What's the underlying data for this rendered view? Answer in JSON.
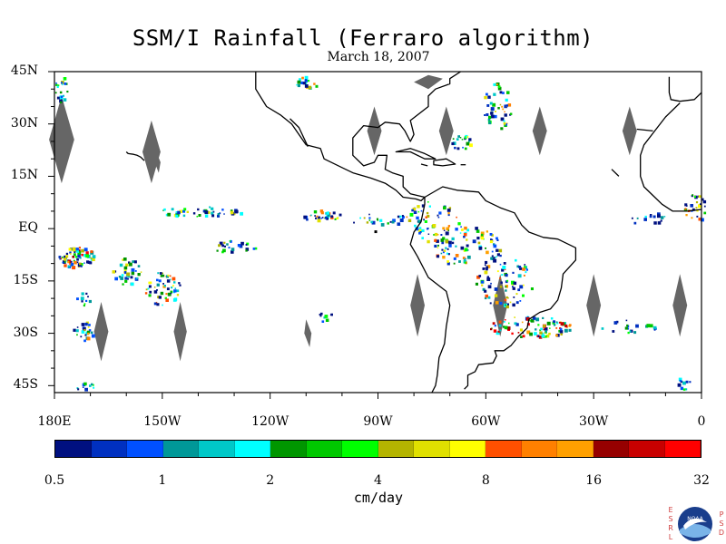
{
  "title": "SSM/I Rainfall (Ferraro algorithm)",
  "subtitle": "March 18, 2007",
  "map": {
    "lon_min": -180,
    "lon_max": 0,
    "lat_min": -47,
    "lat_max": 45,
    "ocean_color": "#ffffff",
    "coast_color": "#000000",
    "gap_color": "#666666"
  },
  "y_ticks": [
    {
      "lat": 45,
      "label": "45N"
    },
    {
      "lat": 30,
      "label": "30N"
    },
    {
      "lat": 15,
      "label": "15N"
    },
    {
      "lat": 0,
      "label": "EQ"
    },
    {
      "lat": -15,
      "label": "15S"
    },
    {
      "lat": -30,
      "label": "30S"
    },
    {
      "lat": -45,
      "label": "45S"
    }
  ],
  "x_ticks": [
    {
      "lon": -180,
      "label": "180E"
    },
    {
      "lon": -150,
      "label": "150W"
    },
    {
      "lon": -120,
      "label": "120W"
    },
    {
      "lon": -90,
      "label": "90W"
    },
    {
      "lon": -60,
      "label": "60W"
    },
    {
      "lon": -30,
      "label": "30W"
    },
    {
      "lon": 0,
      "label": "0"
    }
  ],
  "colorbar": {
    "colors": [
      "#001080",
      "#0030c0",
      "#0050ff",
      "#009898",
      "#00c8c8",
      "#00ffff",
      "#009600",
      "#00c800",
      "#00ff00",
      "#b4b400",
      "#e0e000",
      "#ffff00",
      "#ff5000",
      "#ff8000",
      "#ffa000",
      "#960000",
      "#c80000",
      "#ff0000"
    ],
    "labels": [
      "0.5",
      "1",
      "2",
      "4",
      "8",
      "16",
      "32"
    ],
    "unit": "cm/day"
  },
  "logo": {
    "left_letters": [
      "E",
      "S",
      "R",
      "L"
    ],
    "right_letters": [
      "P",
      "S",
      "D"
    ],
    "agency": "NOAA"
  },
  "swath_gaps": [
    {
      "lon": -178,
      "lat_top": 38,
      "lat_bottom": 13,
      "half_width": 3.5
    },
    {
      "lon": -153,
      "lat_top": 31,
      "lat_bottom": 13,
      "half_width": 2.5
    },
    {
      "lon": -91,
      "lat_top": 35,
      "lat_bottom": 21,
      "half_width": 2
    },
    {
      "lon": -71,
      "lat_top": 35,
      "lat_bottom": 21,
      "half_width": 2
    },
    {
      "lon": -45,
      "lat_top": 35,
      "lat_bottom": 21,
      "half_width": 2
    },
    {
      "lon": -20,
      "lat_top": 35,
      "lat_bottom": 21,
      "half_width": 2
    },
    {
      "lon": -167,
      "lat_top": -21,
      "lat_bottom": -38,
      "half_width": 2
    },
    {
      "lon": -145,
      "lat_top": -21,
      "lat_bottom": -38,
      "half_width": 1.8
    },
    {
      "lon": -79,
      "lat_top": -13,
      "lat_bottom": -31,
      "half_width": 2
    },
    {
      "lon": -56,
      "lat_top": -13,
      "lat_bottom": -31,
      "half_width": 2
    },
    {
      "lon": -30,
      "lat_top": -13,
      "lat_bottom": -31,
      "half_width": 2
    },
    {
      "lon": -6,
      "lat_top": -13,
      "lat_bottom": -31,
      "half_width": 2
    }
  ],
  "rain_clusters": [
    {
      "lon": -178,
      "lat": 40,
      "rlon": 2,
      "rlat": 4,
      "n": 20,
      "max_level": 10
    },
    {
      "lon": -174,
      "lat": -8,
      "rlon": 5,
      "rlat": 3,
      "n": 70,
      "max_level": 17
    },
    {
      "lon": -172,
      "lat": -29,
      "rlon": 3,
      "rlat": 3,
      "n": 25,
      "max_level": 14
    },
    {
      "lon": -160,
      "lat": -12,
      "rlon": 4,
      "rlat": 4,
      "n": 40,
      "max_level": 11
    },
    {
      "lon": -150,
      "lat": -17,
      "rlon": 5,
      "rlat": 5,
      "n": 55,
      "max_level": 14
    },
    {
      "lon": -140,
      "lat": 5,
      "rlon": 12,
      "rlat": 1.5,
      "n": 45,
      "max_level": 11
    },
    {
      "lon": -130,
      "lat": -5,
      "rlon": 6,
      "rlat": 2,
      "n": 25,
      "max_level": 9
    },
    {
      "lon": -106,
      "lat": 4,
      "rlon": 6,
      "rlat": 1.5,
      "n": 30,
      "max_level": 14
    },
    {
      "lon": -105,
      "lat": -25,
      "rlon": 2,
      "rlat": 2,
      "n": 10,
      "max_level": 8
    },
    {
      "lon": -90,
      "lat": 3,
      "rlon": 10,
      "rlat": 1.5,
      "n": 25,
      "max_level": 9
    },
    {
      "lon": -75,
      "lat": 2,
      "rlon": 8,
      "rlat": 6,
      "n": 60,
      "max_level": 14
    },
    {
      "lon": -65,
      "lat": -5,
      "rlon": 10,
      "rlat": 6,
      "n": 90,
      "max_level": 14
    },
    {
      "lon": -55,
      "lat": -15,
      "rlon": 8,
      "rlat": 7,
      "n": 80,
      "max_level": 14
    },
    {
      "lon": -48,
      "lat": -28,
      "rlon": 12,
      "rlat": 3,
      "n": 90,
      "max_level": 17
    },
    {
      "lon": -57,
      "lat": 35,
      "rlon": 4,
      "rlat": 7,
      "n": 50,
      "max_level": 14
    },
    {
      "lon": -67,
      "lat": 25,
      "rlon": 3,
      "rlat": 2,
      "n": 20,
      "max_level": 14
    },
    {
      "lon": -110,
      "lat": 42,
      "rlon": 3,
      "rlat": 2,
      "n": 20,
      "max_level": 14
    },
    {
      "lon": -2,
      "lat": 6,
      "rlon": 3,
      "rlat": 4,
      "n": 30,
      "max_level": 14
    },
    {
      "lon": -15,
      "lat": 3,
      "rlon": 5,
      "rlat": 2,
      "n": 15,
      "max_level": 8
    },
    {
      "lon": -5,
      "lat": -44,
      "rlon": 2,
      "rlat": 2,
      "n": 10,
      "max_level": 8
    },
    {
      "lon": -172,
      "lat": -45,
      "rlon": 3,
      "rlat": 1,
      "n": 10,
      "max_level": 8
    },
    {
      "lon": -20,
      "lat": -28,
      "rlon": 8,
      "rlat": 2,
      "n": 20,
      "max_level": 8
    },
    {
      "lon": -172,
      "lat": -20,
      "rlon": 2,
      "rlat": 2,
      "n": 10,
      "max_level": 9
    }
  ]
}
